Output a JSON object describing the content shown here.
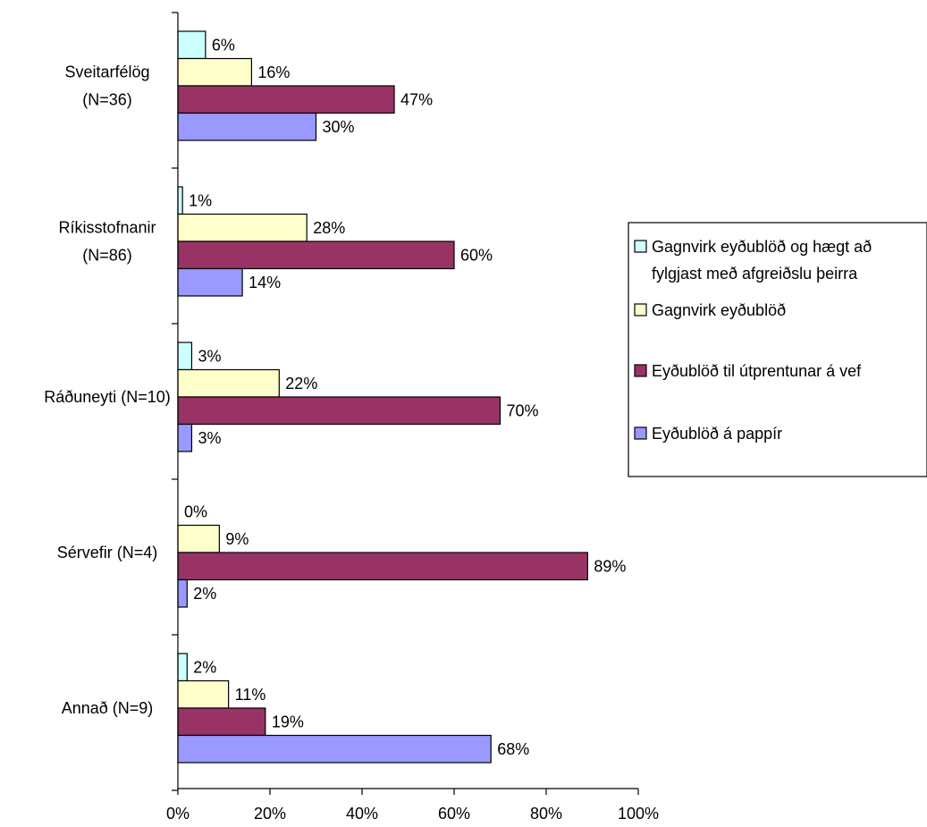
{
  "chart_data": {
    "type": "bar",
    "orientation": "horizontal",
    "categories": [
      "Sveitarfélög (N=36)",
      "Ríkisstofnanir (N=86)",
      "Ráðuneyti (N=10)",
      "Sérvefir (N=4)",
      "Annað (N=9)"
    ],
    "category_lines": [
      [
        "Sveitarfélög",
        "(N=36)"
      ],
      [
        "Ríkisstofnanir",
        "(N=86)"
      ],
      [
        "Ráðuneyti (N=10)"
      ],
      [
        "Sérvefir (N=4)"
      ],
      [
        "Annað (N=9)"
      ]
    ],
    "series": [
      {
        "name": "Gagnvirk eyðublöð og hægt að fylgjast með afgreiðslu þeirra",
        "legend_lines": [
          "Gagnvirk eyðublöð og hægt að",
          "fylgjast með afgreiðslu þeirra"
        ],
        "color": "#ccffff",
        "values": [
          6,
          1,
          3,
          0,
          2
        ],
        "labels": [
          "6%",
          "1%",
          "3%",
          "0%",
          "2%"
        ]
      },
      {
        "name": "Gagnvirk eyðublöð",
        "legend_lines": [
          "Gagnvirk eyðublöð"
        ],
        "color": "#ffffcc",
        "values": [
          16,
          28,
          22,
          9,
          11
        ],
        "labels": [
          "16%",
          "28%",
          "22%",
          "9%",
          "11%"
        ]
      },
      {
        "name": "Eyðublöð til útprentunar á vef",
        "legend_lines": [
          "Eyðublöð til útprentunar á vef"
        ],
        "color": "#993366",
        "values": [
          47,
          60,
          70,
          89,
          19
        ],
        "labels": [
          "47%",
          "60%",
          "70%",
          "89%",
          "19%"
        ]
      },
      {
        "name": "Eyðublöð á pappír",
        "legend_lines": [
          "Eyðublöð á pappír"
        ],
        "color": "#9999ff",
        "values": [
          30,
          14,
          3,
          2,
          68
        ],
        "labels": [
          "30%",
          "14%",
          "3%",
          "2%",
          "68%"
        ]
      }
    ],
    "xlim": [
      0,
      100
    ],
    "xticks": [
      0,
      20,
      40,
      60,
      80,
      100
    ],
    "xtick_labels": [
      "0%",
      "20%",
      "40%",
      "60%",
      "80%",
      "100%"
    ],
    "grid": false,
    "legend_position": "right"
  }
}
